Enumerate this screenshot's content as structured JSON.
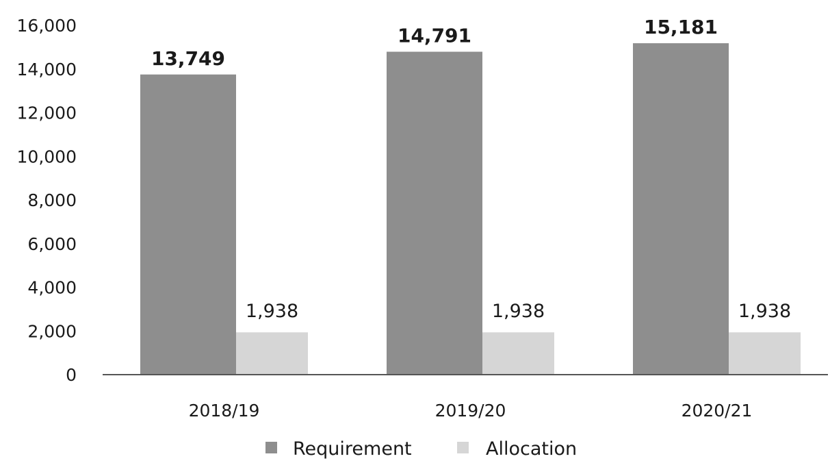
{
  "chart_data": {
    "type": "bar",
    "categories": [
      "2018/19",
      "2019/20",
      "2020/21"
    ],
    "series": [
      {
        "name": "Requirement",
        "values": [
          13749,
          14791,
          15181
        ]
      },
      {
        "name": "Allocation",
        "values": [
          1938,
          1938,
          1938
        ]
      }
    ],
    "data_labels": [
      [
        "13,749",
        "14,791",
        "15,181"
      ],
      [
        "1,938",
        "1,938",
        "1,938"
      ]
    ],
    "y_ticks": [
      "0",
      "2,000",
      "4,000",
      "6,000",
      "8,000",
      "10,000",
      "12,000",
      "14,000",
      "16,000"
    ],
    "ylim": [
      0,
      16000
    ],
    "grid": false,
    "legend": "bottom",
    "title": "",
    "xlabel": "",
    "ylabel": "",
    "colors": {
      "Requirement": "#8e8e8e",
      "Allocation": "#d6d6d6",
      "axis": "#555555",
      "text": "#1a1a1a"
    }
  }
}
